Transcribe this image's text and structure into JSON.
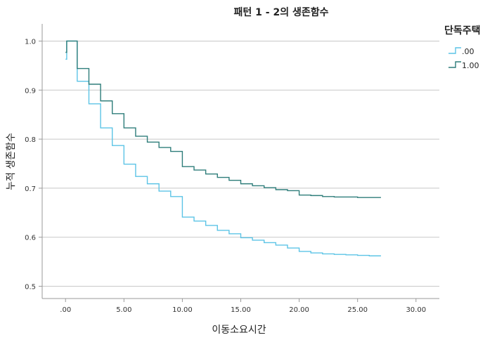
{
  "chart_data": {
    "type": "line",
    "step": true,
    "title": "패턴 1 - 2의 생존함수",
    "xlabel": "이동소요시간",
    "ylabel": "누적 생존함수",
    "xlim": [
      -2,
      32
    ],
    "ylim": [
      0.475,
      1.035
    ],
    "xticks": [
      0,
      5,
      10,
      15,
      20,
      25,
      30
    ],
    "xtick_labels": [
      ".00",
      "5.00",
      "10.00",
      "15.00",
      "20.00",
      "25.00",
      "30.00"
    ],
    "yticks": [
      0.5,
      0.6,
      0.7,
      0.8,
      0.9,
      1.0
    ],
    "ytick_labels": [
      "0.5",
      "0.6",
      "0.7",
      "0.8",
      "0.9",
      "1.0"
    ],
    "grid": true,
    "legend": {
      "title": "단독주택",
      "position": "right"
    },
    "series": [
      {
        "name": ".00",
        "color": "#5cc4e6",
        "x": [
          0,
          0.1,
          1,
          2,
          3,
          4,
          5,
          6,
          7,
          8,
          9,
          10,
          11,
          12,
          13,
          14,
          15,
          16,
          17,
          18,
          19,
          20,
          21,
          22,
          23,
          24,
          25,
          26,
          27
        ],
        "y": [
          0.963,
          1.0,
          0.918,
          0.872,
          0.823,
          0.787,
          0.749,
          0.724,
          0.709,
          0.694,
          0.683,
          0.641,
          0.633,
          0.624,
          0.614,
          0.607,
          0.599,
          0.594,
          0.589,
          0.584,
          0.578,
          0.571,
          0.568,
          0.566,
          0.565,
          0.564,
          0.563,
          0.562,
          0.562
        ]
      },
      {
        "name": "1.00",
        "color": "#2e7d7a",
        "x": [
          0,
          0.1,
          1,
          2,
          3,
          4,
          5,
          6,
          7,
          8,
          9,
          10,
          11,
          12,
          13,
          14,
          15,
          16,
          17,
          18,
          19,
          20,
          21,
          22,
          23,
          24,
          25,
          26,
          27
        ],
        "y": [
          0.977,
          1.0,
          0.944,
          0.912,
          0.878,
          0.852,
          0.823,
          0.806,
          0.794,
          0.783,
          0.775,
          0.744,
          0.737,
          0.729,
          0.722,
          0.716,
          0.709,
          0.705,
          0.701,
          0.697,
          0.695,
          0.686,
          0.685,
          0.683,
          0.682,
          0.682,
          0.681,
          0.681,
          0.681
        ]
      }
    ]
  }
}
